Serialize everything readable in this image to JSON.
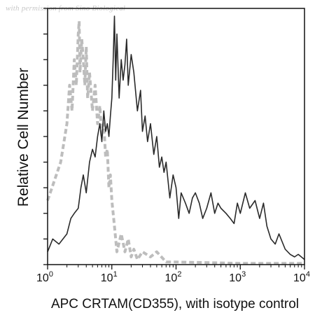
{
  "watermark": "with permission from Sino Biological",
  "chart_data": {
    "type": "line",
    "xlabel": "APC CRTAM(CD355), with isotype control",
    "ylabel": "Relative Cell Number",
    "x_scale": "log",
    "xlim": [
      1,
      10000
    ],
    "ylim": [
      0,
      100
    ],
    "x_ticks": [
      {
        "value": 1,
        "base": "10",
        "exp": "0"
      },
      {
        "value": 10,
        "base": "10",
        "exp": "1"
      },
      {
        "value": 100,
        "base": "10",
        "exp": "2"
      },
      {
        "value": 1000,
        "base": "10",
        "exp": "3"
      },
      {
        "value": 10000,
        "base": "10",
        "exp": "4"
      }
    ],
    "grid": false,
    "series": [
      {
        "style": "dashed",
        "color": "#bdbdbd",
        "x": [
          1.0,
          1.6,
          2.0,
          2.2,
          2.4,
          2.6,
          2.8,
          3.0,
          3.1,
          3.2,
          3.4,
          3.6,
          3.8,
          4.0,
          4.2,
          4.5,
          5.0,
          5.5,
          6.0,
          6.5,
          7.0,
          7.5,
          8.0,
          8.5,
          9.0,
          9.5,
          10,
          11,
          12,
          14,
          16,
          18,
          20,
          22,
          25,
          30,
          40,
          50,
          70,
          100,
          1000,
          10000
        ],
        "y": [
          25,
          40,
          55,
          70,
          60,
          80,
          70,
          90,
          95,
          75,
          88,
          80,
          70,
          85,
          65,
          75,
          60,
          70,
          55,
          62,
          50,
          55,
          42,
          45,
          30,
          35,
          25,
          15,
          5,
          12,
          5,
          10,
          3,
          6,
          2,
          5,
          3,
          5,
          1,
          1,
          0.5,
          0.5
        ]
      },
      {
        "style": "solid",
        "color": "#2a2a2a",
        "x": [
          1.0,
          1.2,
          1.5,
          2.0,
          2.3,
          2.6,
          3.0,
          3.3,
          3.6,
          4.0,
          4.5,
          5.0,
          5.5,
          6.0,
          6.5,
          7.0,
          7.5,
          8.0,
          8.5,
          9.0,
          9.5,
          10,
          10.5,
          11,
          11.5,
          12,
          13,
          14,
          15,
          16,
          17,
          18,
          20,
          22,
          25,
          28,
          30,
          33,
          36,
          40,
          45,
          50,
          55,
          60,
          65,
          70,
          80,
          90,
          100,
          110,
          120,
          140,
          160,
          180,
          200,
          230,
          260,
          300,
          350,
          400,
          450,
          500,
          600,
          700,
          800,
          900,
          1000,
          1200,
          1400,
          1700,
          2000,
          2300,
          2600,
          3000,
          3500,
          4000,
          5000,
          6000,
          7000,
          8000,
          10000
        ],
        "y": [
          5,
          10,
          8,
          12,
          18,
          20,
          22,
          30,
          35,
          28,
          40,
          45,
          42,
          50,
          55,
          48,
          60,
          52,
          55,
          50,
          58,
          65,
          80,
          97,
          72,
          90,
          65,
          80,
          72,
          78,
          88,
          70,
          82,
          75,
          60,
          68,
          52,
          58,
          48,
          55,
          43,
          50,
          38,
          42,
          36,
          40,
          26,
          35,
          30,
          18,
          28,
          24,
          20,
          26,
          28,
          24,
          18,
          22,
          28,
          20,
          24,
          22,
          20,
          18,
          16,
          24,
          20,
          28,
          22,
          25,
          18,
          24,
          15,
          10,
          8,
          12,
          6,
          4,
          3,
          4,
          2
        ]
      }
    ]
  }
}
